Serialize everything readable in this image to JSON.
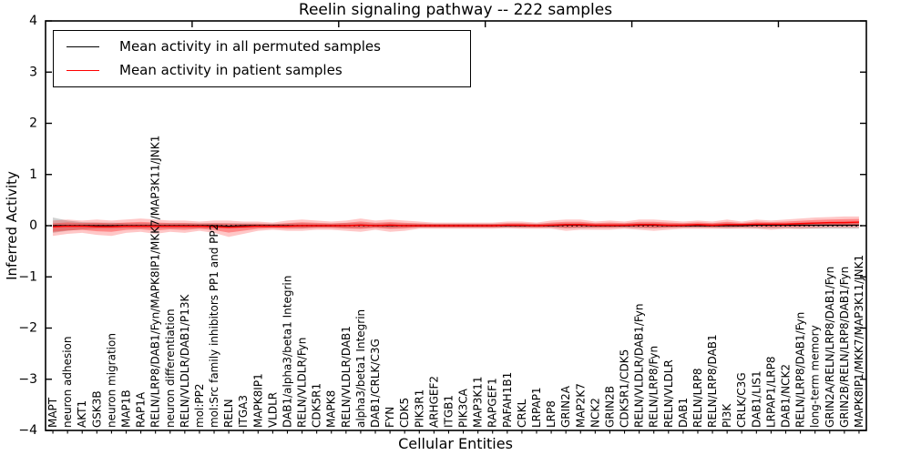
{
  "figure": {
    "title": "Reelin signaling pathway -- 222 samples",
    "xlabel": "Cellular Entities",
    "ylabel": "Inferred Activity"
  },
  "legend": {
    "entries": [
      {
        "label": "Mean activity in all permuted samples",
        "color": "#000000"
      },
      {
        "label": "Mean activity in patient samples",
        "color": "#ff0000"
      }
    ]
  },
  "chart_data": {
    "type": "line",
    "title": "Reelin signaling pathway -- 222 samples",
    "xlabel": "Cellular Entities",
    "ylabel": "Inferred Activity",
    "ylim": [
      -4,
      4
    ],
    "yticks": [
      -4,
      -3,
      -2,
      -1,
      0,
      1,
      2,
      3,
      4
    ],
    "xlim": [
      0,
      56
    ],
    "top_xticks": [
      10,
      20,
      30,
      40,
      50
    ],
    "grid": false,
    "legend_position": "upper left",
    "zero_line": {
      "y": 0,
      "style": "dotted",
      "color": "#000000"
    },
    "categories": [
      "MAPT",
      "neuron adhesion",
      "AKT1",
      "GSK3B",
      "neuron migration",
      "MAP1B",
      "RAP1A",
      "RELN/LRP8/DAB1/Fyn/MAPK8IP1/MKK7/MAP3K11/JNK1",
      "neuron differentiation",
      "RELN/VLDLR/DAB1/P13K",
      "mol:PP2",
      "mol:Src family inhibitors PP1 and PP2",
      "RELN",
      "ITGA3",
      "MAPK8IP1",
      "VLDLR",
      "DAB1/alpha3/beta1 Integrin",
      "RELN/VLDLR/Fyn",
      "CDK5R1",
      "MAPK8",
      "RELN/VLDLR/DAB1",
      "alpha3/beta1 Integrin",
      "DAB1/CRLK/C3G",
      "FYN",
      "CDK5",
      "PIK3R1",
      "ARHGEF2",
      "ITGB1",
      "PIK3CA",
      "MAP3K11",
      "RAPGEF1",
      "PAFAH1B1",
      "CRKL",
      "LRPAP1",
      "LRP8",
      "GRIN2A",
      "MAP2K7",
      "NCK2",
      "GRIN2B",
      "CDK5R1/CDK5",
      "RELN/VLDLR/DAB1/Fyn",
      "RELN/LRP8/Fyn",
      "RELN/VLDLR",
      "DAB1",
      "RELN/LRP8",
      "RELN/LRP8/DAB1",
      "PI3K",
      "CRLK/C3G",
      "DAB1/LIS1",
      "LRPAP1/LRP8",
      "DAB1/NCK2",
      "RELN/LRP8/DAB1/Fyn",
      "long-term memory",
      "GRIN2A/RELN/LRP8/DAB1/Fyn",
      "GRIN2B/RELN/LRP8/DAB1/Fyn",
      "MAPK8IP1/MKK7/MAP3K11/JNK1"
    ],
    "series": [
      {
        "name": "Mean activity in all permuted samples",
        "color": "#000000",
        "values": [
          0,
          0,
          0,
          0,
          0,
          0,
          0,
          0,
          0,
          0,
          0,
          0,
          -0.01,
          0,
          0,
          0,
          0,
          0,
          0,
          0,
          0,
          0.01,
          0,
          0,
          0,
          0,
          0,
          0,
          0,
          0,
          0,
          0,
          0,
          0,
          0,
          0.01,
          0.01,
          0,
          0,
          0,
          0.01,
          0.01,
          0,
          0,
          0,
          0,
          0,
          0,
          0.01,
          0.01,
          0.01,
          0.01,
          0.01,
          0.01,
          0.01,
          0.01
        ]
      },
      {
        "name": "Mean activity in patient samples",
        "color": "#ff0000",
        "values": [
          -0.02,
          -0.01,
          -0.01,
          -0.02,
          -0.02,
          -0.01,
          -0.01,
          -0.01,
          -0.01,
          -0.01,
          -0.01,
          -0.02,
          -0.03,
          -0.02,
          -0.01,
          -0.01,
          -0.01,
          0,
          0,
          0,
          0,
          0.01,
          0,
          0.01,
          0,
          0,
          0,
          0,
          0,
          0,
          0,
          0.01,
          0.01,
          0,
          0.01,
          0.02,
          0.02,
          0.01,
          0.01,
          0.01,
          0.02,
          0.02,
          0.01,
          0.01,
          0.02,
          0.01,
          0.02,
          0.02,
          0.03,
          0.03,
          0.03,
          0.04,
          0.05,
          0.06,
          0.06,
          0.07
        ]
      }
    ],
    "bands": [
      {
        "name": "permuted-std",
        "color": "#999999",
        "opacity": 0.45,
        "upper": [
          0.16,
          0.1,
          0.07,
          0.06,
          0.06,
          0.05,
          0.05,
          0.05,
          0.05,
          0.05,
          0.05,
          0.05,
          0.05,
          0.05,
          0.04,
          0.04,
          0.04,
          0.05,
          0.04,
          0.04,
          0.05,
          0.05,
          0.04,
          0.05,
          0.04,
          0.04,
          0.04,
          0.04,
          0.04,
          0.04,
          0.04,
          0.04,
          0.04,
          0.04,
          0.04,
          0.05,
          0.05,
          0.04,
          0.04,
          0.04,
          0.05,
          0.05,
          0.04,
          0.04,
          0.04,
          0.04,
          0.05,
          0.04,
          0.05,
          0.05,
          0.05,
          0.06,
          0.07,
          0.07,
          0.08,
          0.08
        ],
        "lower": [
          -0.14,
          -0.1,
          -0.07,
          -0.06,
          -0.06,
          -0.05,
          -0.05,
          -0.05,
          -0.05,
          -0.05,
          -0.05,
          -0.05,
          -0.05,
          -0.05,
          -0.04,
          -0.04,
          -0.04,
          -0.05,
          -0.04,
          -0.04,
          -0.05,
          -0.05,
          -0.04,
          -0.05,
          -0.04,
          -0.04,
          -0.04,
          -0.04,
          -0.04,
          -0.04,
          -0.04,
          -0.04,
          -0.04,
          -0.04,
          -0.04,
          -0.05,
          -0.05,
          -0.04,
          -0.04,
          -0.04,
          -0.05,
          -0.05,
          -0.04,
          -0.04,
          -0.04,
          -0.04,
          -0.05,
          -0.04,
          -0.05,
          -0.05,
          -0.05,
          -0.06,
          -0.06,
          -0.06,
          -0.06,
          -0.06
        ]
      },
      {
        "name": "patient-std",
        "color": "#ff0000",
        "opacity": 0.22,
        "upper": [
          0.1,
          0.12,
          0.1,
          0.12,
          0.1,
          0.12,
          0.14,
          0.12,
          0.1,
          0.1,
          0.08,
          0.1,
          0.1,
          0.08,
          0.08,
          0.06,
          0.1,
          0.12,
          0.1,
          0.08,
          0.1,
          0.14,
          0.1,
          0.12,
          0.1,
          0.08,
          0.06,
          0.06,
          0.06,
          0.06,
          0.06,
          0.08,
          0.08,
          0.06,
          0.1,
          0.12,
          0.12,
          0.08,
          0.1,
          0.08,
          0.12,
          0.12,
          0.1,
          0.08,
          0.1,
          0.08,
          0.12,
          0.08,
          0.12,
          0.1,
          0.12,
          0.14,
          0.16,
          0.17,
          0.18,
          0.18
        ],
        "lower": [
          -0.2,
          -0.16,
          -0.14,
          -0.18,
          -0.2,
          -0.14,
          -0.12,
          -0.16,
          -0.12,
          -0.14,
          -0.1,
          -0.14,
          -0.22,
          -0.16,
          -0.1,
          -0.08,
          -0.1,
          -0.1,
          -0.08,
          -0.08,
          -0.1,
          -0.12,
          -0.08,
          -0.12,
          -0.1,
          -0.06,
          -0.06,
          -0.06,
          -0.06,
          -0.06,
          -0.06,
          -0.05,
          -0.06,
          -0.06,
          -0.06,
          -0.1,
          -0.08,
          -0.08,
          -0.08,
          -0.06,
          -0.08,
          -0.1,
          -0.08,
          -0.06,
          -0.06,
          -0.06,
          -0.06,
          -0.06,
          -0.06,
          -0.08,
          -0.06,
          -0.06,
          -0.05,
          -0.04,
          -0.04,
          -0.04
        ]
      }
    ]
  }
}
